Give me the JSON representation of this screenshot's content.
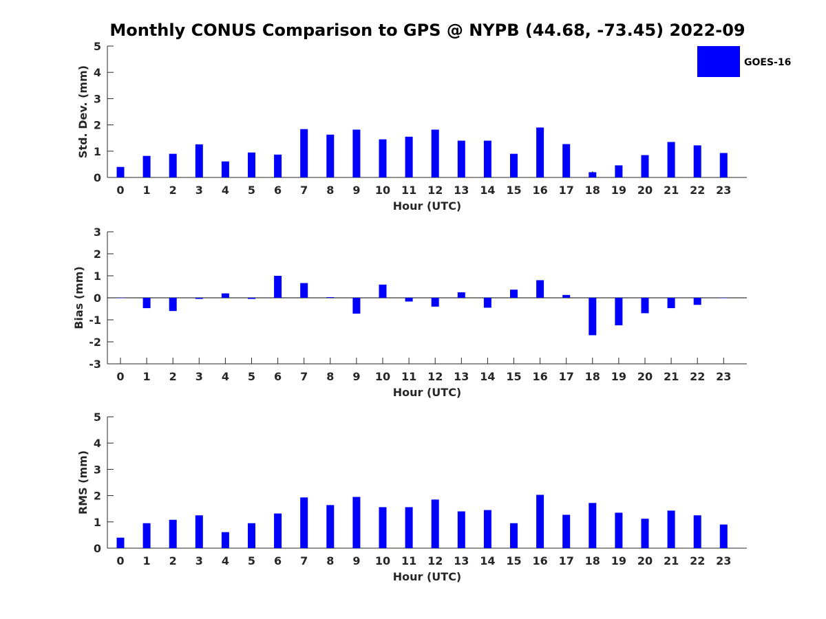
{
  "title": "Monthly CONUS Comparison to GPS @ NYPB (44.68, -73.45) 2022-09",
  "colors": {
    "bar": "#0000ff",
    "axis": "#262626",
    "background": "#ffffff"
  },
  "legend": {
    "label": "GOES-16",
    "placement": "top-right"
  },
  "chart_data": [
    {
      "type": "bar",
      "title": "",
      "xlabel": "Hour (UTC)",
      "ylabel": "Std. Dev. (mm)",
      "ylim": [
        0,
        5
      ],
      "yticks": [
        0,
        1,
        2,
        3,
        4,
        5
      ],
      "categories": [
        "0",
        "1",
        "2",
        "3",
        "4",
        "5",
        "6",
        "7",
        "8",
        "9",
        "10",
        "11",
        "12",
        "13",
        "14",
        "15",
        "16",
        "17",
        "18",
        "19",
        "20",
        "21",
        "22",
        "23"
      ],
      "series": [
        {
          "name": "GOES-16",
          "values": [
            0.4,
            0.82,
            0.9,
            1.26,
            0.61,
            0.95,
            0.87,
            1.84,
            1.63,
            1.82,
            1.45,
            1.55,
            1.82,
            1.4,
            1.4,
            0.9,
            1.9,
            1.27,
            0.2,
            0.46,
            0.85,
            1.35,
            1.22,
            0.93
          ]
        }
      ],
      "grid": false
    },
    {
      "type": "bar",
      "title": "",
      "xlabel": "Hour (UTC)",
      "ylabel": "Bias (mm)",
      "ylim": [
        -3,
        3
      ],
      "yticks": [
        -3,
        -2,
        -1,
        0,
        1,
        2,
        3
      ],
      "categories": [
        "0",
        "1",
        "2",
        "3",
        "4",
        "5",
        "6",
        "7",
        "8",
        "9",
        "10",
        "11",
        "12",
        "13",
        "14",
        "15",
        "16",
        "17",
        "18",
        "19",
        "20",
        "21",
        "22",
        "23"
      ],
      "series": [
        {
          "name": "GOES-16",
          "values": [
            0.0,
            -0.47,
            -0.6,
            -0.05,
            0.2,
            -0.05,
            1.0,
            0.67,
            0.03,
            -0.72,
            0.6,
            -0.17,
            -0.4,
            0.25,
            -0.45,
            0.37,
            0.8,
            0.13,
            -1.7,
            -1.25,
            -0.7,
            -0.47,
            -0.32,
            0.0
          ]
        }
      ],
      "grid": false
    },
    {
      "type": "bar",
      "title": "",
      "xlabel": "Hour (UTC)",
      "ylabel": "RMS (mm)",
      "ylim": [
        0,
        5
      ],
      "yticks": [
        0,
        1,
        2,
        3,
        4,
        5
      ],
      "categories": [
        "0",
        "1",
        "2",
        "3",
        "4",
        "5",
        "6",
        "7",
        "8",
        "9",
        "10",
        "11",
        "12",
        "13",
        "14",
        "15",
        "16",
        "17",
        "18",
        "19",
        "20",
        "21",
        "22",
        "23"
      ],
      "series": [
        {
          "name": "GOES-16",
          "values": [
            0.4,
            0.95,
            1.08,
            1.25,
            0.61,
            0.95,
            1.32,
            1.93,
            1.64,
            1.95,
            1.56,
            1.56,
            1.85,
            1.4,
            1.45,
            0.95,
            2.03,
            1.27,
            1.72,
            1.35,
            1.12,
            1.43,
            1.25,
            0.9
          ]
        }
      ],
      "grid": false
    }
  ]
}
